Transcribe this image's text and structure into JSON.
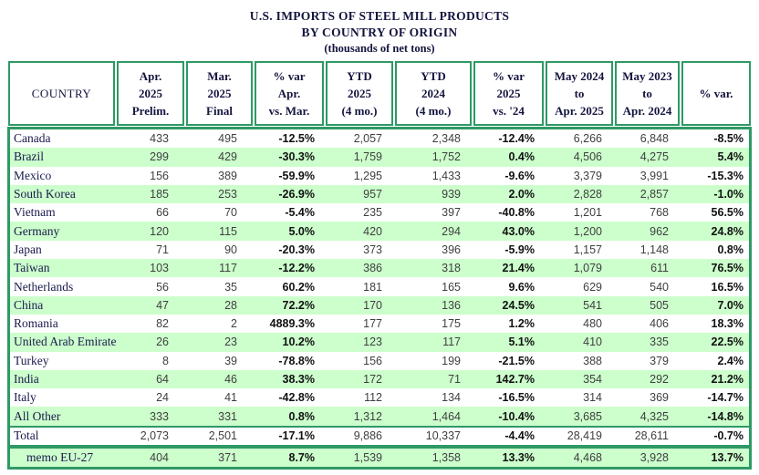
{
  "title": {
    "line1": "U.S. IMPORTS OF STEEL MILL PRODUCTS",
    "line2": "BY COUNTRY OF ORIGIN",
    "line3": "(thousands of net tons)"
  },
  "colors": {
    "border_green": "#2f9966",
    "row_stripe_green": "#ccffcc",
    "heading_text": "#14143f",
    "number_text": "#3f3f3f",
    "percent_text": "#111111"
  },
  "table": {
    "columns": [
      {
        "id": "country",
        "label_lines": [
          "COUNTRY"
        ],
        "type": "text"
      },
      {
        "id": "apr-2025-prelim",
        "label_lines": [
          "Apr.",
          "2025",
          "Prelim."
        ],
        "type": "num"
      },
      {
        "id": "mar-2025-final",
        "label_lines": [
          "Mar.",
          "2025",
          "Final"
        ],
        "type": "num"
      },
      {
        "id": "pct-var-apr-vs-mar",
        "label_lines": [
          "% var",
          "Apr.",
          "vs. Mar."
        ],
        "type": "pct"
      },
      {
        "id": "ytd-2025",
        "label_lines": [
          "YTD",
          "2025",
          "(4 mo.)"
        ],
        "type": "num"
      },
      {
        "id": "ytd-2024",
        "label_lines": [
          "YTD",
          "2024",
          "(4 mo.)"
        ],
        "type": "num"
      },
      {
        "id": "pct-var-2025-vs-24",
        "label_lines": [
          "% var",
          "2025",
          "vs. '24"
        ],
        "type": "pct"
      },
      {
        "id": "may-2024-to-apr-2025",
        "label_lines": [
          "May 2024",
          "to",
          "Apr. 2025"
        ],
        "type": "num"
      },
      {
        "id": "may-2023-to-apr-2024",
        "label_lines": [
          "May 2023",
          "to",
          "Apr. 2024"
        ],
        "type": "num"
      },
      {
        "id": "pct-var",
        "label_lines": [
          "% var."
        ],
        "type": "pct"
      }
    ],
    "rows": [
      {
        "country": "Canada",
        "values": [
          "433",
          "495",
          "-12.5%",
          "2,057",
          "2,348",
          "-12.4%",
          "6,266",
          "6,848",
          "-8.5%"
        ]
      },
      {
        "country": "Brazil",
        "values": [
          "299",
          "429",
          "-30.3%",
          "1,759",
          "1,752",
          "0.4%",
          "4,506",
          "4,275",
          "5.4%"
        ]
      },
      {
        "country": "Mexico",
        "values": [
          "156",
          "389",
          "-59.9%",
          "1,295",
          "1,433",
          "-9.6%",
          "3,379",
          "3,991",
          "-15.3%"
        ]
      },
      {
        "country": "South Korea",
        "values": [
          "185",
          "253",
          "-26.9%",
          "957",
          "939",
          "2.0%",
          "2,828",
          "2,857",
          "-1.0%"
        ]
      },
      {
        "country": "Vietnam",
        "values": [
          "66",
          "70",
          "-5.4%",
          "235",
          "397",
          "-40.8%",
          "1,201",
          "768",
          "56.5%"
        ]
      },
      {
        "country": "Germany",
        "values": [
          "120",
          "115",
          "5.0%",
          "420",
          "294",
          "43.0%",
          "1,200",
          "962",
          "24.8%"
        ]
      },
      {
        "country": "Japan",
        "values": [
          "71",
          "90",
          "-20.3%",
          "373",
          "396",
          "-5.9%",
          "1,157",
          "1,148",
          "0.8%"
        ]
      },
      {
        "country": "Taiwan",
        "values": [
          "103",
          "117",
          "-12.2%",
          "386",
          "318",
          "21.4%",
          "1,079",
          "611",
          "76.5%"
        ]
      },
      {
        "country": "Netherlands",
        "values": [
          "56",
          "35",
          "60.2%",
          "181",
          "165",
          "9.6%",
          "629",
          "540",
          "16.5%"
        ]
      },
      {
        "country": "China",
        "values": [
          "47",
          "28",
          "72.2%",
          "170",
          "136",
          "24.5%",
          "541",
          "505",
          "7.0%"
        ]
      },
      {
        "country": "Romania",
        "values": [
          "82",
          "2",
          "4889.3%",
          "177",
          "175",
          "1.2%",
          "480",
          "406",
          "18.3%"
        ]
      },
      {
        "country": "United Arab Emirates",
        "values": [
          "26",
          "23",
          "10.2%",
          "123",
          "117",
          "5.1%",
          "410",
          "335",
          "22.5%"
        ]
      },
      {
        "country": "Turkey",
        "values": [
          "8",
          "39",
          "-78.8%",
          "156",
          "199",
          "-21.5%",
          "388",
          "379",
          "2.4%"
        ]
      },
      {
        "country": "India",
        "values": [
          "64",
          "46",
          "38.3%",
          "172",
          "71",
          "142.7%",
          "354",
          "292",
          "21.2%"
        ]
      },
      {
        "country": "Italy",
        "values": [
          "24",
          "41",
          "-42.8%",
          "112",
          "134",
          "-16.5%",
          "314",
          "369",
          "-14.7%"
        ]
      },
      {
        "country": "All Other",
        "values": [
          "333",
          "331",
          "0.8%",
          "1,312",
          "1,464",
          "-10.4%",
          "3,685",
          "4,325",
          "-14.8%"
        ]
      }
    ],
    "total_row": {
      "country": "Total",
      "values": [
        "2,073",
        "2,501",
        "-17.1%",
        "9,886",
        "10,337",
        "-4.4%",
        "28,419",
        "28,611",
        "-0.7%"
      ]
    },
    "memo_row": {
      "country": "memo EU-27",
      "values": [
        "404",
        "371",
        "8.7%",
        "1,539",
        "1,358",
        "13.3%",
        "4,468",
        "3,928",
        "13.7%"
      ]
    }
  }
}
